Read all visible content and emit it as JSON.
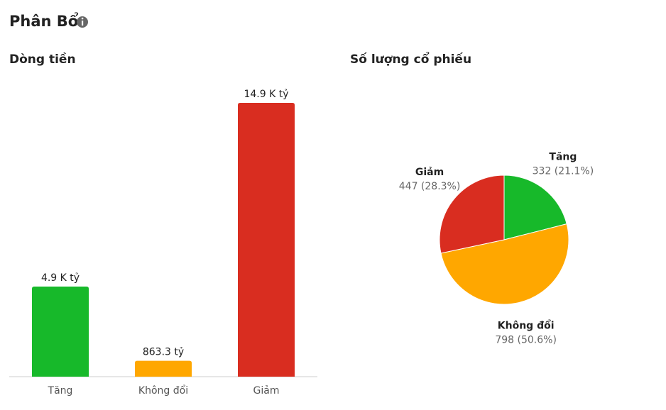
{
  "title": "Phân Bổ",
  "chart_data": [
    {
      "type": "bar",
      "title": "Dòng tiền",
      "categories": [
        "Tăng",
        "Không đổi",
        "Giảm"
      ],
      "values": [
        4900,
        863.3,
        14900
      ],
      "value_labels": [
        "4.9 K tỷ",
        "863.3 tỷ",
        "14.9 K tỷ"
      ],
      "colors": [
        "#17b92a",
        "#ffa700",
        "#d92d20"
      ]
    },
    {
      "type": "pie",
      "title": "Số lượng cổ phiếu",
      "categories": [
        "Tăng",
        "Không đổi",
        "Giảm"
      ],
      "values": [
        332,
        798,
        447
      ],
      "value_labels": [
        "332 (21.1%)",
        "798 (50.6%)",
        "447 (28.3%)"
      ],
      "colors": [
        "#17b92a",
        "#ffa700",
        "#d92d20"
      ]
    }
  ]
}
